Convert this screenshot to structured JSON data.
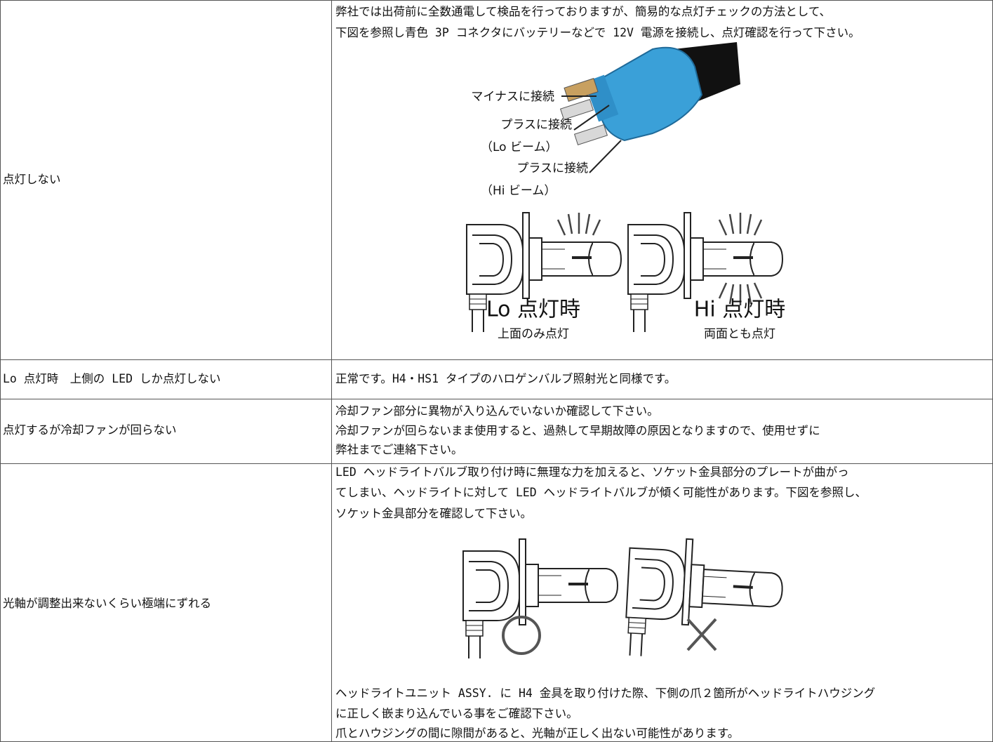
{
  "table": {
    "rows": [
      {
        "problem": "点灯しない",
        "solution": [
          "弊社では出荷前に全数通電して検品を行っておりますが、簡易的な点灯チェックの方法として、",
          "下図を参照し青色 3P コネクタにバッテリーなどで 12V 電源を接続し、点灯確認を行って下さい。"
        ],
        "figure": {
          "minus": "マイナスに接続",
          "plus_lo": "プラスに接続",
          "lo_beam": "（Lo ビーム）",
          "plus_hi": "プラスに接続",
          "hi_beam": "（Hi ビーム）",
          "lo_title": "Lo 点灯時",
          "lo_caption": "上面のみ点灯",
          "hi_title": "Hi 点灯時",
          "hi_caption": "両面とも点灯"
        }
      },
      {
        "problem": "Lo 点灯時　上側の LED しか点灯しない",
        "solution": [
          "正常です。H4・HS1 タイプのハロゲンバルブ照射光と同様です。"
        ]
      },
      {
        "problem": "点灯するが冷却ファンが回らない",
        "solution": [
          "冷却ファン部分に異物が入り込んでいないか確認して下さい。",
          "冷却ファンが回らないまま使用すると、過熱して早期故障の原因となりますので、使用せずに",
          "弊社までご連絡下さい。"
        ]
      },
      {
        "problem": "光軸が調整出来ないくらい極端にずれる",
        "solution": [
          "LED ヘッドライトバルブ取り付け時に無理な力を加えると、ソケット金具部分のプレートが曲がっ",
          "てしまい、ヘッドライトに対して LED ヘッドライトバルブが傾く可能性があります。下図を参照し、",
          "ソケット金具部分を確認して下さい。"
        ],
        "note": [
          "ヘッドライトユニット ASSY. に H4 金具を取り付けた際、下側の爪２箇所がヘッドライトハウジング",
          "に正しく嵌まり込んでいる事をご確認下さい。",
          "爪とハウジングの間に隙間があると、光軸が正しく出ない可能性があります。"
        ]
      }
    ]
  }
}
